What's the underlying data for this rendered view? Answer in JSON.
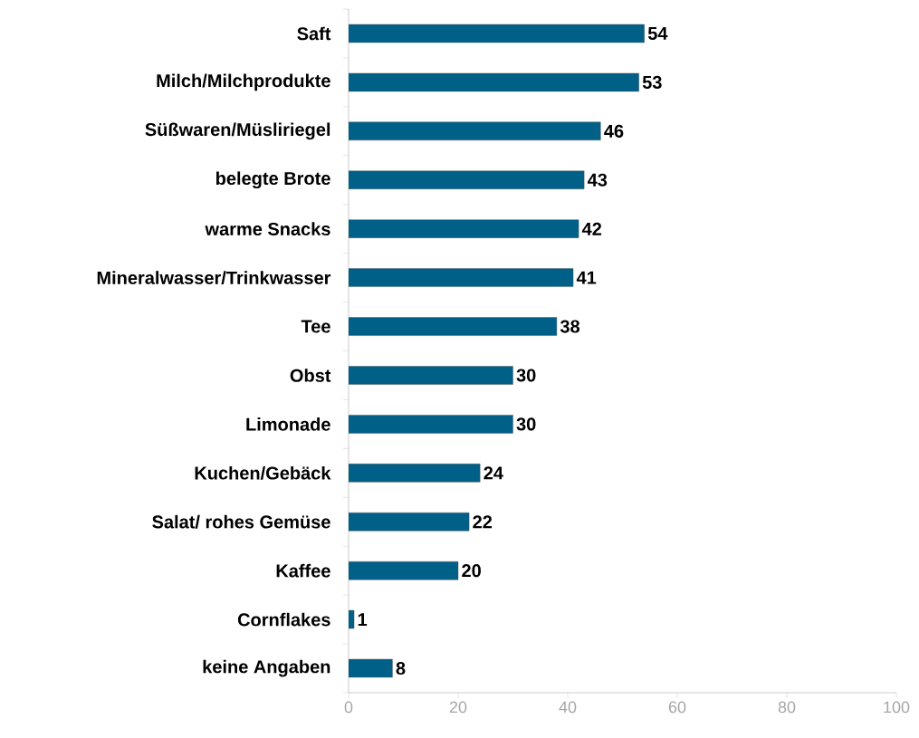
{
  "chart_data": {
    "type": "bar",
    "orientation": "horizontal",
    "categories": [
      "Saft",
      "Milch/Milchprodukte",
      "Süßwaren/Müsliriegel",
      "belegte Brote",
      "warme Snacks",
      "Mineralwasser/Trinkwasser",
      "Tee",
      "Obst",
      "Limonade",
      "Kuchen/Gebäck",
      "Salat/ rohes Gemüse",
      "Kaffee",
      "Cornflakes",
      "keine Angaben"
    ],
    "values": [
      54,
      53,
      46,
      43,
      42,
      41,
      38,
      30,
      30,
      24,
      22,
      20,
      1,
      8
    ],
    "color": "#006088",
    "data_labels": true,
    "xlim": [
      0,
      100
    ],
    "xticks": [
      0,
      20,
      40,
      60,
      80,
      100
    ]
  }
}
